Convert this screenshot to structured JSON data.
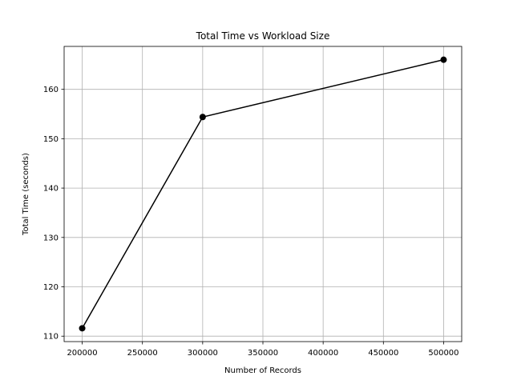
{
  "chart_data": {
    "type": "line",
    "title": "Total Time vs Workload Size",
    "xlabel": "Number of Records",
    "ylabel": "Total Time (seconds)",
    "x": [
      200000,
      300000,
      500000
    ],
    "series": [
      {
        "values": [
          111.6,
          154.4,
          166.0
        ],
        "color": "#000000",
        "marker": "circle"
      }
    ],
    "xlim": [
      185000,
      515000
    ],
    "ylim": [
      108.9,
      168.7
    ],
    "xticks": [
      200000,
      250000,
      300000,
      350000,
      400000,
      450000,
      500000
    ],
    "yticks": [
      110,
      120,
      130,
      140,
      150,
      160
    ],
    "grid": true
  }
}
